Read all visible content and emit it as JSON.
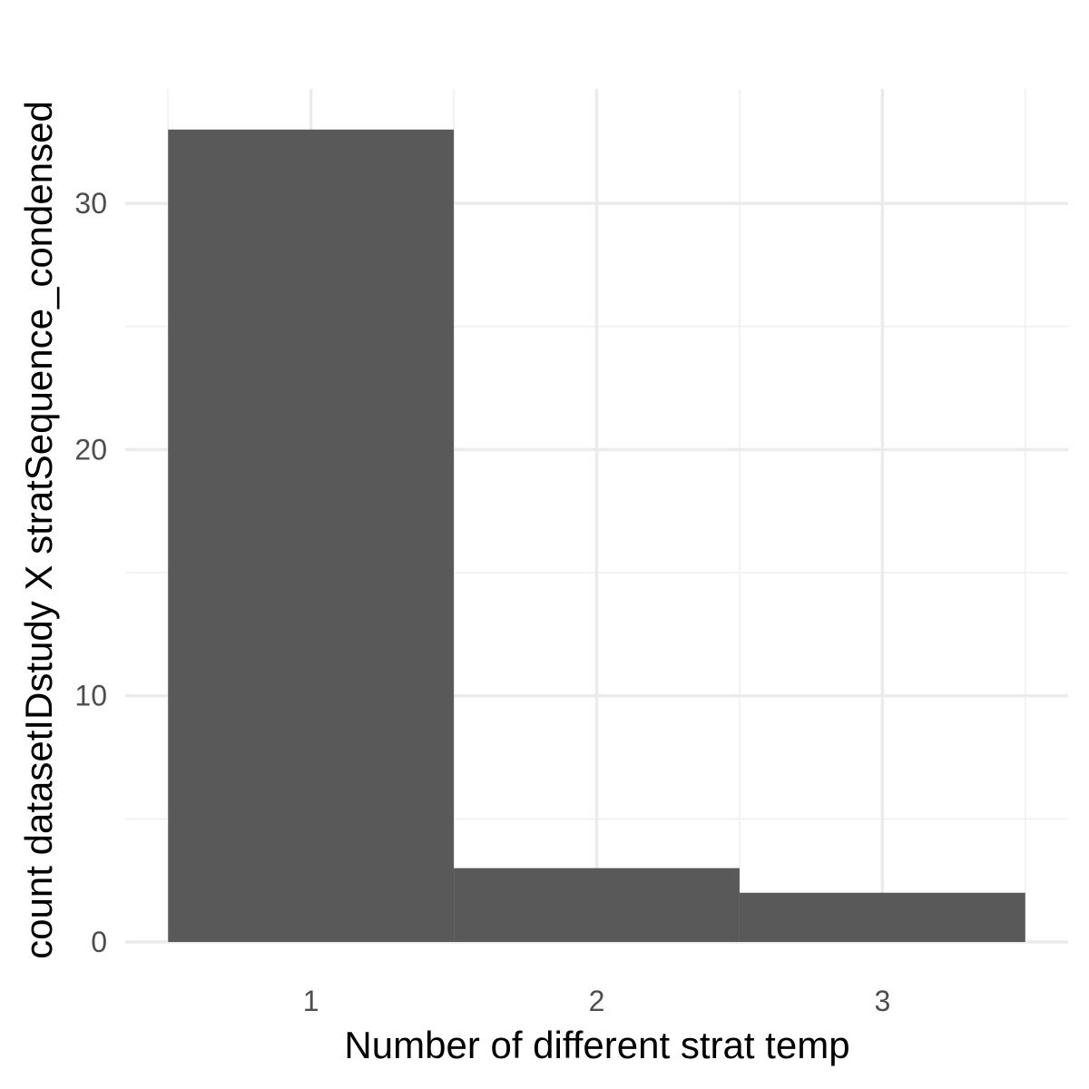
{
  "chart_data": {
    "type": "bar",
    "title": "",
    "xlabel": "Number of different strat temp",
    "ylabel": "count datasetIDstudy X stratSequence_condensed",
    "categories": [
      "1",
      "2",
      "3"
    ],
    "x": [
      1,
      2,
      3
    ],
    "values": [
      33,
      3,
      2
    ],
    "xlim": [
      0.35,
      3.65
    ],
    "ylim": [
      0,
      34.65
    ],
    "y_ticks": [
      0,
      10,
      20,
      30
    ],
    "y_tick_labels": [
      "0",
      "10",
      "20",
      "30"
    ],
    "x_ticks": [
      1,
      2,
      3
    ],
    "x_tick_labels": [
      "1",
      "2",
      "3"
    ],
    "grid": true,
    "legend": "none",
    "colors": {
      "bar": "#595959",
      "grid_major": "#ebebeb",
      "grid_minor": "#f2f2f2",
      "tick_text": "#4d4d4d",
      "axis_title": "#000000",
      "background": "#ffffff"
    }
  }
}
